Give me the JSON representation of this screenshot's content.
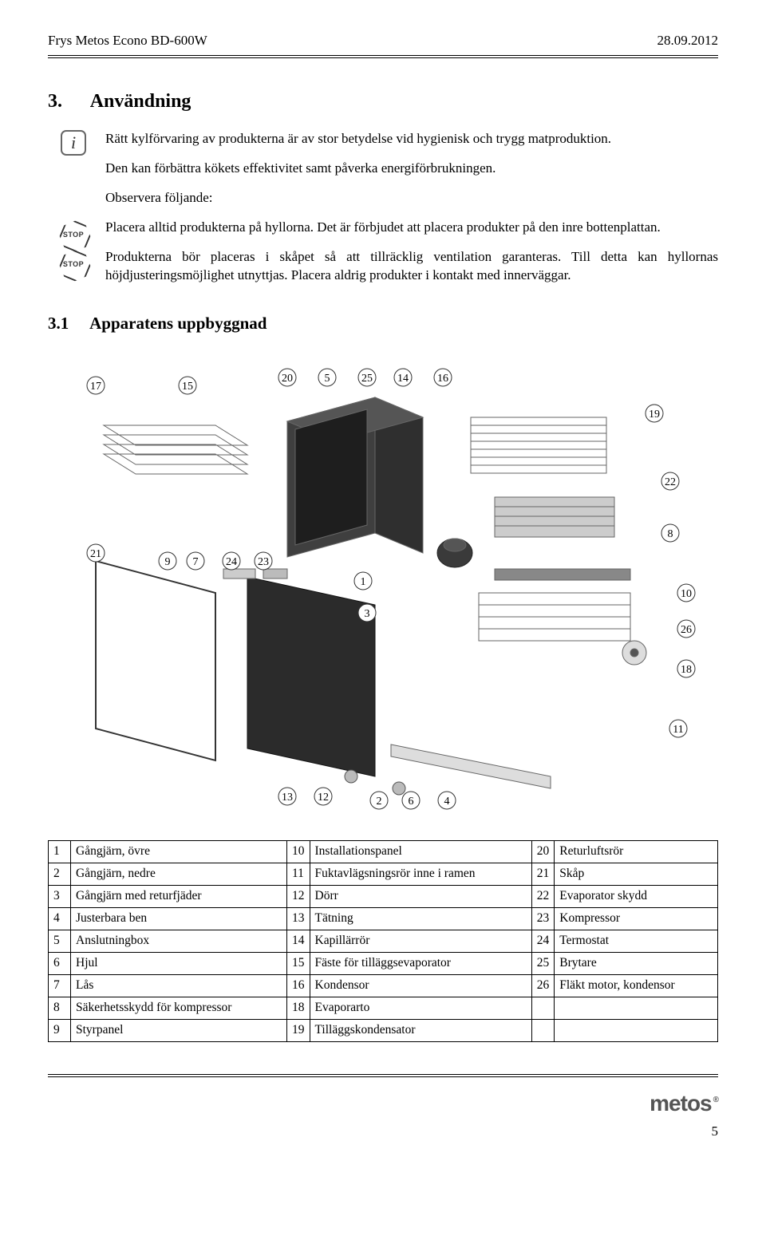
{
  "header": {
    "title_left": "Frys Metos Econo BD-600W",
    "date_right": "28.09.2012"
  },
  "section": {
    "number": "3.",
    "title": "Användning",
    "paragraphs": [
      {
        "icon": "info",
        "text": "Rätt kylförvaring av produkterna är av stor betydelse vid hygienisk och trygg matproduktion."
      },
      {
        "icon": null,
        "text": "Den kan förbättra kökets effektivitet samt påverka energiförbrukningen."
      },
      {
        "icon": null,
        "text": "Observera följande:"
      },
      {
        "icon": "stop",
        "text": "Placera alltid produkterna på hyllorna. Det är förbjudet att placera produkter på den inre bottenplattan."
      },
      {
        "icon": "stop",
        "text": "Produkterna bör placeras i skåpet så att tillräcklig ventilation garanteras. Till detta kan hyllornas höjdjusteringsmöjlighet utnyttjas. Placera aldrig produkter i kontakt med innerväggar."
      }
    ]
  },
  "subsection": {
    "number": "3.1",
    "title": "Apparatens uppbyggnad"
  },
  "diagram": {
    "callouts": [
      "17",
      "15",
      "20",
      "5",
      "25",
      "14",
      "16",
      "19",
      "22",
      "8",
      "10",
      "26",
      "18",
      "11",
      "21",
      "9",
      "7",
      "24",
      "23",
      "1",
      "3",
      "13",
      "12",
      "2",
      "6",
      "4"
    ],
    "stroke": "#555555",
    "fill_dark": "#4a4a4a",
    "fill_light": "#d8d8d8"
  },
  "parts_table": {
    "rows": [
      [
        "1",
        "Gångjärn, övre",
        "10",
        "Installationspanel",
        "20",
        "Returluftsrör"
      ],
      [
        "2",
        "Gångjärn, nedre",
        "11",
        "Fuktavlägsningsrör inne i ramen",
        "21",
        "Skåp"
      ],
      [
        "3",
        "Gångjärn med returfjäder",
        "12",
        "Dörr",
        "22",
        "Evaporator skydd"
      ],
      [
        "4",
        "Justerbara ben",
        "13",
        "Tätning",
        "23",
        "Kompressor"
      ],
      [
        "5",
        "Anslutningbox",
        "14",
        "Kapillärrör",
        "24",
        "Termostat"
      ],
      [
        "6",
        "Hjul",
        "15",
        "Fäste för tilläggsevaporator",
        "25",
        "Brytare"
      ],
      [
        "7",
        "Lås",
        "16",
        "Kondensor",
        "26",
        "Fläkt motor, kondensor"
      ],
      [
        "8",
        "Säkerhetsskydd för kompressor",
        "18",
        "Evaporarto",
        "",
        ""
      ],
      [
        "9",
        "Styrpanel",
        "19",
        "Tilläggskondensator",
        "",
        ""
      ]
    ]
  },
  "footer": {
    "page": "5",
    "brand": "metos"
  }
}
